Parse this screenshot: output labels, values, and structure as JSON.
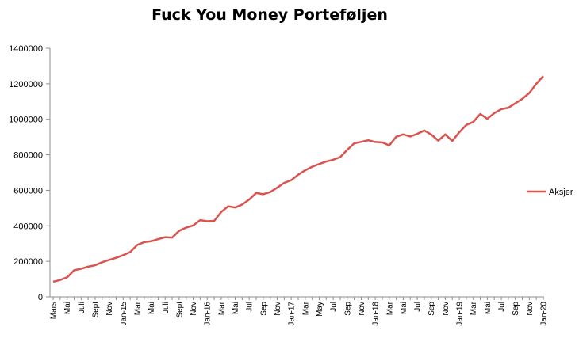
{
  "chart_data": {
    "type": "line",
    "title": "Fuck You Money Porteføljen",
    "ylim": [
      0,
      1400000
    ],
    "y_ticks": [
      0,
      200000,
      400000,
      600000,
      800000,
      1000000,
      1200000,
      1400000
    ],
    "y_tick_labels": [
      "0",
      "200000",
      "400000",
      "600000",
      "800000",
      "1000000",
      "1200000",
      "1400000"
    ],
    "grid": false,
    "legend_position": "right",
    "x_tick_labels": [
      "Mars",
      "Mai",
      "Juli",
      "Sept",
      "Nov",
      "Jan-15",
      "Mar",
      "Mai",
      "Juli",
      "Sept",
      "Nov",
      "Jan-16",
      "Mar",
      "Mai",
      "Jul",
      "Sep",
      "Nov",
      "Jan-17",
      "Mar",
      "May",
      "Jul",
      "Sep",
      "Nov",
      "Jan-18",
      "Mar",
      "Mai",
      "Jul",
      "Sep",
      "Nov",
      "Jan-19",
      "Mar",
      "Mai",
      "Jul",
      "Sep",
      "Nov",
      "Jan-20"
    ],
    "series": [
      {
        "name": "Aksjer",
        "color": "#d9534f",
        "values": [
          85000,
          95000,
          110000,
          150000,
          158000,
          170000,
          178000,
          195000,
          208000,
          220000,
          235000,
          252000,
          292000,
          308000,
          313000,
          325000,
          336000,
          334000,
          372000,
          390000,
          402000,
          432000,
          426000,
          428000,
          478000,
          510000,
          503000,
          520000,
          548000,
          585000,
          578000,
          590000,
          615000,
          642000,
          657000,
          688000,
          713000,
          733000,
          748000,
          762000,
          772000,
          787000,
          828000,
          865000,
          873000,
          882000,
          872000,
          870000,
          853000,
          902000,
          915000,
          903000,
          918000,
          937000,
          914000,
          880000,
          915000,
          878000,
          927000,
          968000,
          985000,
          1030000,
          1003000,
          1035000,
          1057000,
          1065000,
          1090000,
          1115000,
          1148000,
          1200000,
          1243000
        ]
      }
    ]
  }
}
